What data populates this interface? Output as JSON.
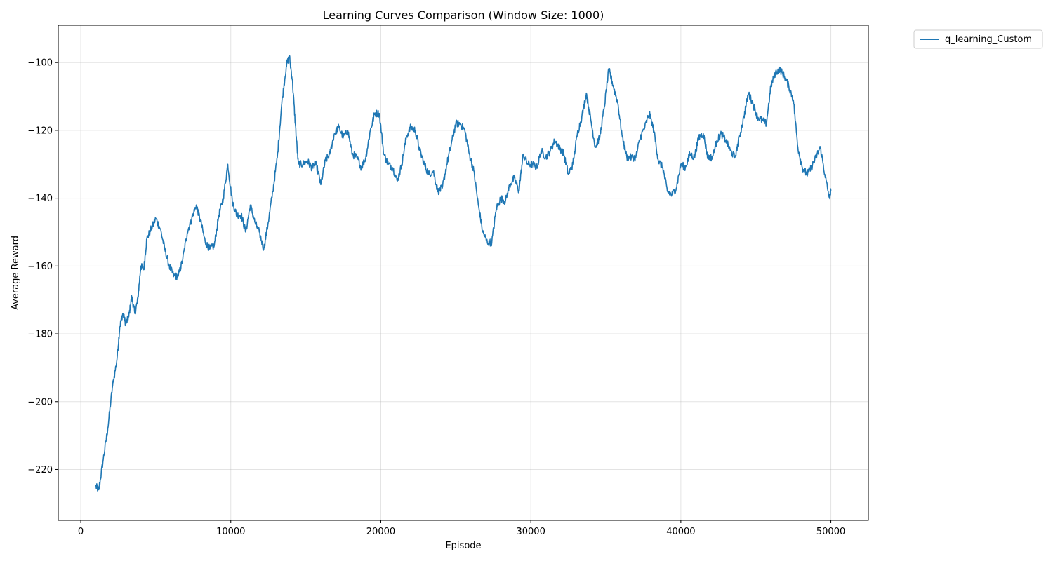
{
  "chart_data": {
    "type": "line",
    "title": "Learning Curves Comparison (Window Size: 1000)",
    "xlabel": "Episode",
    "ylabel": "Average Reward",
    "xlim": [
      -1500,
      52500
    ],
    "ylim": [
      -235,
      -89
    ],
    "xticks": [
      0,
      10000,
      20000,
      30000,
      40000,
      50000
    ],
    "yticks": [
      -220,
      -200,
      -180,
      -160,
      -140,
      -120,
      -100
    ],
    "grid": true,
    "legend_position": "outside-top-right",
    "series": [
      {
        "name": "q_learning_Custom",
        "color": "#1f77b4",
        "x": [
          1000,
          1200,
          1500,
          1800,
          2100,
          2400,
          2600,
          2800,
          3000,
          3200,
          3400,
          3600,
          3800,
          4000,
          4200,
          4400,
          4700,
          5000,
          5300,
          5600,
          5900,
          6200,
          6500,
          6800,
          7100,
          7400,
          7700,
          8000,
          8300,
          8600,
          8900,
          9200,
          9500,
          9800,
          10100,
          10400,
          10700,
          11000,
          11300,
          11600,
          11900,
          12200,
          12500,
          12800,
          13100,
          13400,
          13700,
          13900,
          14100,
          14300,
          14500,
          14800,
          15100,
          15400,
          15700,
          16000,
          16300,
          16600,
          16900,
          17200,
          17500,
          17800,
          18100,
          18400,
          18700,
          19000,
          19300,
          19600,
          19900,
          20200,
          20500,
          20800,
          21100,
          21400,
          21700,
          22000,
          22300,
          22600,
          22900,
          23200,
          23500,
          23800,
          24100,
          24400,
          24700,
          25000,
          25300,
          25600,
          25900,
          26200,
          26500,
          26800,
          27100,
          27400,
          27700,
          28000,
          28300,
          28600,
          28900,
          29200,
          29500,
          29800,
          30100,
          30400,
          30700,
          31000,
          31300,
          31600,
          31900,
          32200,
          32500,
          32800,
          33100,
          33400,
          33700,
          34000,
          34300,
          34600,
          34900,
          35200,
          35500,
          35800,
          36100,
          36400,
          36700,
          37000,
          37300,
          37600,
          37900,
          38200,
          38500,
          38800,
          39100,
          39400,
          39700,
          40000,
          40300,
          40600,
          40900,
          41200,
          41500,
          41800,
          42100,
          42400,
          42700,
          43000,
          43300,
          43600,
          43900,
          44200,
          44500,
          44800,
          45100,
          45400,
          45700,
          46000,
          46300,
          46600,
          46900,
          47200,
          47500,
          47800,
          48100,
          48400,
          48700,
          49000,
          49300,
          49600,
          49900,
          50000
        ],
        "values": [
          -225,
          -226,
          -217,
          -208,
          -196,
          -188,
          -178,
          -174,
          -177,
          -175,
          -169,
          -174,
          -170,
          -160,
          -161,
          -152,
          -149,
          -146,
          -149,
          -155,
          -160,
          -163,
          -163,
          -158,
          -150,
          -146,
          -142,
          -147,
          -153,
          -155,
          -154,
          -145,
          -140,
          -130,
          -141,
          -145,
          -145,
          -150,
          -142,
          -147,
          -150,
          -155,
          -147,
          -138,
          -128,
          -112,
          -101,
          -98,
          -105,
          -118,
          -130,
          -130,
          -129,
          -131,
          -130,
          -136,
          -129,
          -127,
          -121,
          -119,
          -122,
          -120,
          -127,
          -128,
          -131,
          -128,
          -120,
          -115,
          -115,
          -127,
          -130,
          -131,
          -135,
          -130,
          -122,
          -119,
          -120,
          -126,
          -130,
          -133,
          -132,
          -138,
          -137,
          -130,
          -124,
          -118,
          -118,
          -120,
          -127,
          -132,
          -142,
          -150,
          -153,
          -153,
          -143,
          -140,
          -141,
          -136,
          -134,
          -138,
          -127,
          -130,
          -130,
          -131,
          -126,
          -128,
          -126,
          -123,
          -125,
          -127,
          -133,
          -130,
          -121,
          -116,
          -109,
          -117,
          -125,
          -122,
          -113,
          -102,
          -107,
          -112,
          -122,
          -128,
          -128,
          -128,
          -122,
          -119,
          -115,
          -120,
          -129,
          -131,
          -138,
          -139,
          -137,
          -130,
          -131,
          -127,
          -128,
          -122,
          -121,
          -128,
          -128,
          -123,
          -121,
          -123,
          -126,
          -128,
          -122,
          -116,
          -109,
          -112,
          -116,
          -117,
          -118,
          -107,
          -103,
          -102,
          -104,
          -107,
          -111,
          -125,
          -131,
          -133,
          -131,
          -128,
          -125,
          -133,
          -140,
          -138
        ]
      }
    ]
  }
}
